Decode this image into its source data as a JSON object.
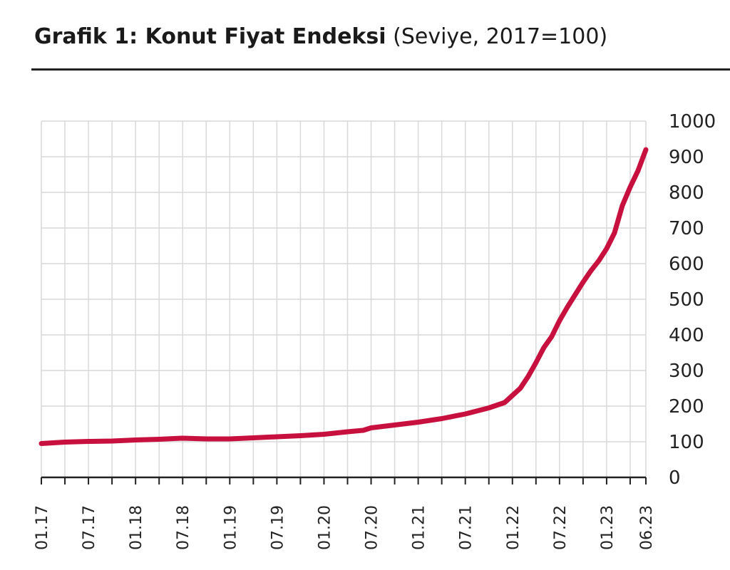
{
  "title": {
    "main": "Grafik 1: Konut Fiyat Endeksi",
    "sub": "(Seviye, 2017=100)"
  },
  "colors": {
    "line": "#c8103e",
    "grid": "#d9d9d9",
    "text": "#222222"
  },
  "chart_data": {
    "type": "line",
    "title": "Grafik 1: Konut Fiyat Endeksi",
    "subtitle": "(Seviye, 2017=100)",
    "xlabel": "",
    "ylabel": "",
    "ylim": [
      0,
      1000
    ],
    "yticks": [
      0,
      100,
      200,
      300,
      400,
      500,
      600,
      700,
      800,
      900,
      1000
    ],
    "y_axis_position": "right",
    "grid": true,
    "x_tick_labels": [
      "01.17",
      "07.17",
      "01.18",
      "07.18",
      "01.19",
      "07.19",
      "01.20",
      "07.20",
      "01.21",
      "07.21",
      "01.22",
      "07.22",
      "01.23",
      "06.23"
    ],
    "x_tick_dates": [
      "2017-01",
      "2017-07",
      "2018-01",
      "2018-07",
      "2019-01",
      "2019-07",
      "2020-01",
      "2020-07",
      "2021-01",
      "2021-07",
      "2022-01",
      "2022-07",
      "2023-01",
      "2023-06"
    ],
    "series": [
      {
        "name": "",
        "x": [
          "2017-01",
          "2017-04",
          "2017-07",
          "2017-10",
          "2018-01",
          "2018-04",
          "2018-07",
          "2018-10",
          "2019-01",
          "2019-04",
          "2019-07",
          "2019-10",
          "2020-01",
          "2020-04",
          "2020-06",
          "2020-07",
          "2020-10",
          "2021-01",
          "2021-04",
          "2021-07",
          "2021-10",
          "2021-12",
          "2022-01",
          "2022-02",
          "2022-03",
          "2022-04",
          "2022-05",
          "2022-06",
          "2022-07",
          "2022-08",
          "2022-09",
          "2022-10",
          "2022-11",
          "2022-12",
          "2023-01",
          "2023-02",
          "2023-03",
          "2023-04",
          "2023-05",
          "2023-06"
        ],
        "y": [
          95,
          99,
          101,
          102,
          105,
          107,
          110,
          108,
          108,
          111,
          114,
          117,
          121,
          128,
          132,
          139,
          147,
          155,
          165,
          178,
          195,
          210,
          230,
          250,
          283,
          322,
          364,
          395,
          440,
          478,
          513,
          548,
          580,
          608,
          642,
          686,
          763,
          815,
          861,
          920
        ]
      }
    ]
  }
}
